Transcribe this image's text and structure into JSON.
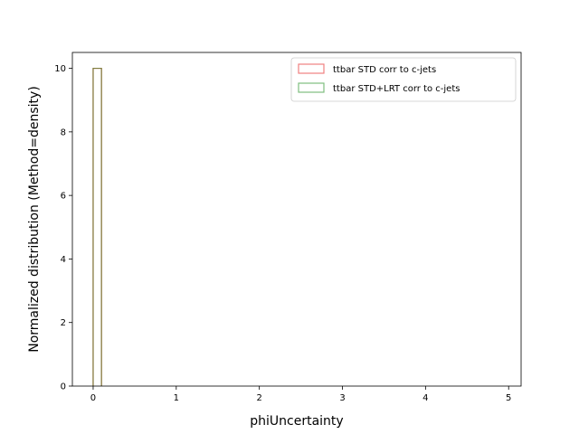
{
  "chart_data": {
    "type": "histogram",
    "xlabel": "phiUncertainty",
    "ylabel": "Normalized distribution (Method=density)",
    "xlim": [
      -0.25,
      5.15
    ],
    "ylim": [
      0,
      10.5
    ],
    "xticks": [
      0,
      1,
      2,
      3,
      4,
      5
    ],
    "yticks": [
      0,
      2,
      4,
      6,
      8,
      10
    ],
    "bin_edges": [
      0,
      0.1
    ],
    "grid": false,
    "legend_position": "top-right",
    "series": [
      {
        "name": "ttbar STD corr to c-jets",
        "color": "#f08080",
        "values": [
          10
        ]
      },
      {
        "name": "ttbar STD+LRT corr to c-jets",
        "color": "#7fbf7f",
        "values": [
          10
        ]
      }
    ],
    "overlap_color": "#7f7f40"
  }
}
